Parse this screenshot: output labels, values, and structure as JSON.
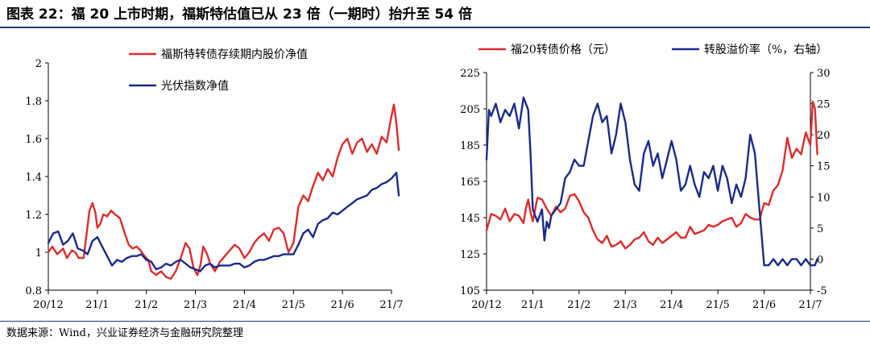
{
  "figure": {
    "title": "图表 22：福 20 上市时期，福斯特估值已从 23 倍（一期时）抬升至 54 倍",
    "source": "数据来源：Wind，兴业证券经济与金融研究院整理"
  },
  "chart_data": [
    {
      "type": "line",
      "title": "",
      "categories": [
        "20/12",
        "21/1",
        "21/2",
        "21/3",
        "21/4",
        "21/5",
        "21/6",
        "21/7"
      ],
      "ylim": [
        0.8,
        2
      ],
      "yticks": [
        "0.8",
        "1",
        "1.2",
        "1.4",
        "1.6",
        "1.8",
        "2"
      ],
      "legend_position": "top-right",
      "series": [
        {
          "name": "福斯特转债存续期内股价净值",
          "color": "#e02b2b",
          "x": [
            0,
            0.08,
            0.18,
            0.3,
            0.38,
            0.48,
            0.55,
            0.62,
            0.72,
            0.84,
            0.9,
            0.96,
            1.0,
            1.06,
            1.12,
            1.2,
            1.28,
            1.36,
            1.46,
            1.56,
            1.64,
            1.72,
            1.8,
            1.88,
            1.96,
            2.04,
            2.1,
            2.2,
            2.3,
            2.4,
            2.5,
            2.6,
            2.7,
            2.8,
            2.88,
            2.96,
            3.04,
            3.1,
            3.16,
            3.24,
            3.3,
            3.4,
            3.5,
            3.6,
            3.7,
            3.8,
            3.9,
            4.0,
            4.1,
            4.2,
            4.3,
            4.4,
            4.5,
            4.6,
            4.7,
            4.8,
            4.9,
            5.0,
            5.1,
            5.2,
            5.3,
            5.4,
            5.5,
            5.6,
            5.7,
            5.8,
            5.9,
            6.0,
            6.1,
            6.2,
            6.3,
            6.4,
            6.5,
            6.6,
            6.7,
            6.8,
            6.9,
            7.0,
            7.05,
            7.1,
            7.15
          ],
          "values": [
            1.0,
            1.03,
            0.99,
            1.02,
            0.97,
            1.01,
            1.0,
            0.97,
            0.97,
            1.22,
            1.26,
            1.21,
            1.13,
            1.15,
            1.2,
            1.19,
            1.22,
            1.2,
            1.18,
            1.1,
            1.04,
            1.02,
            1.03,
            1.01,
            0.98,
            0.96,
            0.9,
            0.88,
            0.9,
            0.87,
            0.86,
            0.9,
            0.97,
            1.05,
            1.02,
            0.92,
            0.88,
            0.93,
            1.03,
            0.99,
            0.94,
            0.9,
            0.95,
            0.98,
            1.01,
            1.04,
            1.02,
            0.97,
            1.0,
            1.05,
            1.08,
            1.1,
            1.06,
            1.12,
            1.13,
            1.1,
            1.0,
            1.05,
            1.24,
            1.3,
            1.27,
            1.35,
            1.42,
            1.38,
            1.44,
            1.4,
            1.5,
            1.57,
            1.6,
            1.52,
            1.58,
            1.6,
            1.53,
            1.57,
            1.52,
            1.61,
            1.58,
            1.72,
            1.78,
            1.68,
            1.54
          ]
        },
        {
          "name": "光伏指数净值",
          "color": "#1b2a8c",
          "x": [
            0,
            0.1,
            0.2,
            0.3,
            0.4,
            0.5,
            0.6,
            0.7,
            0.8,
            0.9,
            1.0,
            1.1,
            1.2,
            1.3,
            1.4,
            1.5,
            1.6,
            1.7,
            1.8,
            1.9,
            2.0,
            2.1,
            2.2,
            2.3,
            2.4,
            2.5,
            2.6,
            2.7,
            2.8,
            2.9,
            3.0,
            3.1,
            3.2,
            3.3,
            3.4,
            3.5,
            3.6,
            3.7,
            3.8,
            3.9,
            4.0,
            4.1,
            4.2,
            4.3,
            4.4,
            4.5,
            4.6,
            4.7,
            4.8,
            4.9,
            5.0,
            5.1,
            5.2,
            5.3,
            5.4,
            5.5,
            5.6,
            5.7,
            5.8,
            5.9,
            6.0,
            6.1,
            6.2,
            6.3,
            6.4,
            6.5,
            6.6,
            6.7,
            6.8,
            6.9,
            7.0,
            7.1,
            7.15
          ],
          "values": [
            1.05,
            1.1,
            1.11,
            1.04,
            1.06,
            1.1,
            1.02,
            1.01,
            0.99,
            1.06,
            1.08,
            1.03,
            0.98,
            0.93,
            0.96,
            0.95,
            0.97,
            0.98,
            0.98,
            0.99,
            0.96,
            0.95,
            0.91,
            0.92,
            0.94,
            0.93,
            0.95,
            0.96,
            0.94,
            0.92,
            0.91,
            0.9,
            0.93,
            0.94,
            0.92,
            0.93,
            0.93,
            0.93,
            0.94,
            0.94,
            0.92,
            0.93,
            0.95,
            0.96,
            0.96,
            0.97,
            0.98,
            0.98,
            0.99,
            0.99,
            0.99,
            1.04,
            1.1,
            1.12,
            1.08,
            1.15,
            1.17,
            1.18,
            1.21,
            1.2,
            1.22,
            1.24,
            1.26,
            1.28,
            1.29,
            1.3,
            1.33,
            1.34,
            1.36,
            1.37,
            1.39,
            1.42,
            1.3
          ]
        }
      ]
    },
    {
      "type": "line",
      "title": "",
      "categories": [
        "20/12",
        "21/1",
        "21/2",
        "21/3",
        "21/4",
        "21/5",
        "21/6",
        "21/7"
      ],
      "ylim": [
        105,
        225
      ],
      "yticks": [
        "105",
        "125",
        "145",
        "165",
        "185",
        "205",
        "225"
      ],
      "y2lim": [
        -5,
        30
      ],
      "y2ticks": [
        "-5",
        "0",
        "5",
        "10",
        "15",
        "20",
        "25",
        "30"
      ],
      "legend_position": "top",
      "series": [
        {
          "name": "福20转债价格（元）",
          "axis": "left",
          "color": "#e02b2b",
          "x": [
            0,
            0.1,
            0.2,
            0.3,
            0.4,
            0.5,
            0.6,
            0.7,
            0.8,
            0.85,
            0.9,
            0.95,
            1.0,
            1.1,
            1.2,
            1.3,
            1.4,
            1.5,
            1.6,
            1.7,
            1.8,
            1.9,
            2.0,
            2.1,
            2.2,
            2.3,
            2.4,
            2.5,
            2.6,
            2.7,
            2.8,
            2.9,
            3.0,
            3.1,
            3.2,
            3.3,
            3.4,
            3.5,
            3.6,
            3.7,
            3.8,
            3.9,
            4.0,
            4.1,
            4.2,
            4.3,
            4.4,
            4.5,
            4.6,
            4.7,
            4.8,
            4.9,
            5.0,
            5.1,
            5.2,
            5.3,
            5.4,
            5.5,
            5.6,
            5.7,
            5.8,
            5.9,
            6.0,
            6.1,
            6.2,
            6.3,
            6.4,
            6.5,
            6.6,
            6.7,
            6.8,
            6.9,
            7.0,
            7.05,
            7.1,
            7.15
          ],
          "values": [
            138,
            147,
            146,
            144,
            150,
            143,
            147,
            146,
            142,
            150,
            155,
            148,
            143,
            156,
            155,
            150,
            146,
            151,
            148,
            150,
            157,
            158,
            154,
            148,
            145,
            138,
            133,
            131,
            135,
            129,
            130,
            132,
            128,
            130,
            133,
            134,
            137,
            132,
            130,
            134,
            131,
            133,
            135,
            137,
            134,
            134,
            140,
            136,
            137,
            138,
            141,
            140,
            141,
            143,
            144,
            145,
            140,
            142,
            147,
            145,
            144,
            144,
            153,
            152,
            160,
            163,
            171,
            189,
            178,
            183,
            180,
            192,
            185,
            209,
            205,
            180
          ]
        },
        {
          "name": "转股溢价率（%，右轴）",
          "axis": "right",
          "color": "#1b2a8c",
          "x": [
            0,
            0.05,
            0.1,
            0.2,
            0.3,
            0.4,
            0.5,
            0.6,
            0.7,
            0.8,
            0.85,
            0.9,
            0.95,
            1.0,
            1.1,
            1.2,
            1.25,
            1.3,
            1.35,
            1.4,
            1.5,
            1.6,
            1.7,
            1.8,
            1.9,
            2.0,
            2.1,
            2.2,
            2.3,
            2.4,
            2.5,
            2.6,
            2.7,
            2.8,
            2.9,
            3.0,
            3.1,
            3.2,
            3.3,
            3.4,
            3.5,
            3.6,
            3.7,
            3.8,
            3.9,
            4.0,
            4.1,
            4.2,
            4.3,
            4.4,
            4.5,
            4.6,
            4.7,
            4.8,
            4.9,
            5.0,
            5.1,
            5.2,
            5.3,
            5.4,
            5.5,
            5.6,
            5.7,
            5.8,
            5.9,
            6.0,
            6.1,
            6.2,
            6.3,
            6.4,
            6.5,
            6.6,
            6.7,
            6.8,
            6.9,
            7.0,
            7.1,
            7.15
          ],
          "values": [
            16,
            24,
            23,
            25,
            22,
            24,
            23,
            25,
            21,
            26,
            25,
            24,
            17,
            8,
            6,
            8,
            3,
            6,
            5,
            7,
            8,
            9,
            13,
            14,
            16,
            15,
            15,
            19,
            23,
            25,
            22,
            23,
            17,
            20,
            25,
            22,
            16,
            12,
            11,
            17,
            19,
            15,
            17,
            13,
            16,
            19,
            16,
            11,
            12,
            15,
            12,
            10,
            14,
            13,
            15,
            11,
            15,
            13,
            9,
            12,
            10,
            13,
            20,
            17,
            8,
            -1,
            -1,
            0,
            -1,
            0,
            -1,
            0,
            0,
            -1,
            0,
            -1,
            -1,
            0
          ]
        }
      ]
    }
  ]
}
